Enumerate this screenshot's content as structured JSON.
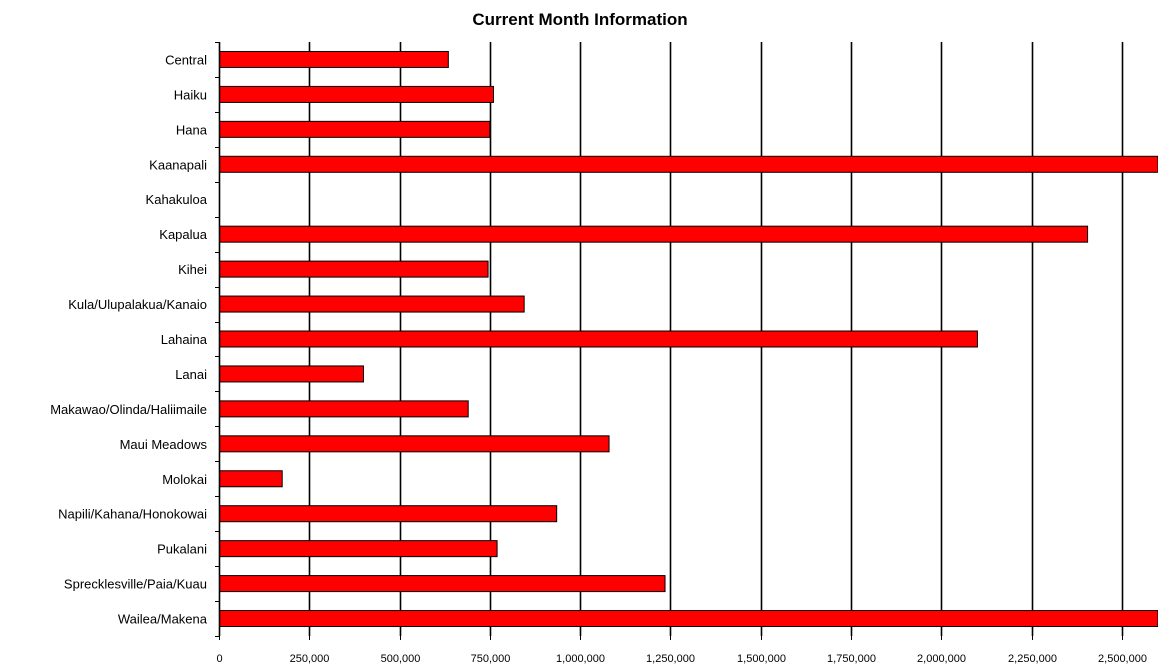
{
  "chart_data": {
    "type": "bar",
    "orientation": "horizontal",
    "title": "Current Month Information",
    "xlabel": "",
    "ylabel": "",
    "xlim": [
      0,
      2600000
    ],
    "x_ticks": [
      0,
      250000,
      500000,
      750000,
      1000000,
      1250000,
      1500000,
      1750000,
      2000000,
      2250000,
      2500000
    ],
    "x_tick_labels": [
      "0",
      "250,000",
      "500,000",
      "750,000",
      "1,000,000",
      "1,250,000",
      "1,500,000",
      "1,750,000",
      "2,000,000",
      "2,250,000",
      "2,500,000"
    ],
    "grid": "vertical",
    "legend": "none",
    "bar_color": "#ff0000",
    "bar_border_color": "#000000",
    "categories": [
      "Central",
      "Haiku",
      "Hana",
      "Kaanapali",
      "Kahakuloa",
      "Kapalua",
      "Kihei",
      "Kula/Ulupalakua/Kanaio",
      "Lahaina",
      "Lanai",
      "Makawao/Olinda/Haliimaile",
      "Maui Meadows",
      "Molokai",
      "Napili/Kahana/Honokowai",
      "Pukalani",
      "Sprecklesville/Paia/Kuau",
      "Wailea/Makena"
    ],
    "values": [
      635000,
      760000,
      750000,
      2600000,
      0,
      2405000,
      745000,
      845000,
      2100000,
      400000,
      690000,
      1080000,
      175000,
      935000,
      770000,
      1235000,
      2600000
    ]
  }
}
